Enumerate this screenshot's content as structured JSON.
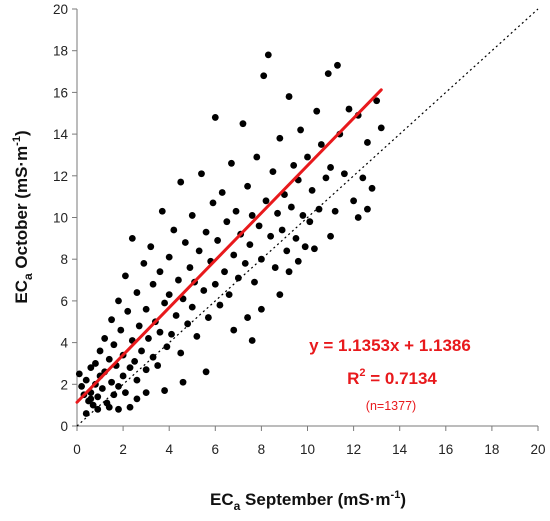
{
  "chart_data": {
    "type": "scatter",
    "title": "",
    "xlabel": {
      "main": "EC",
      "sub": "a",
      "rest": " September (mS·m",
      "sup": "-1",
      "end": ")"
    },
    "ylabel": {
      "main": "EC",
      "sub": "a",
      "rest": " October (mS·m",
      "sup": "-1",
      "end": ")"
    },
    "xlim": [
      0,
      20
    ],
    "ylim": [
      0,
      20
    ],
    "xticks": [
      0,
      2,
      4,
      6,
      8,
      10,
      12,
      14,
      16,
      18,
      20
    ],
    "yticks": [
      0,
      2,
      4,
      6,
      8,
      10,
      12,
      14,
      16,
      18,
      20
    ],
    "grid": false,
    "legend": "none",
    "point_color": "#000000",
    "regression": {
      "slope": 1.1353,
      "intercept": 1.1386,
      "x_range": [
        0,
        13.2
      ],
      "color": "#e8191c",
      "equation": "y = 1.1353x + 1.1386",
      "r2_prefix": "R",
      "r2_sup": "2",
      "r2_rest": " = 0.7134",
      "n_label": "(n=1377)"
    },
    "reference_line": {
      "style": "dotted",
      "color": "#000000",
      "from": [
        0,
        0
      ],
      "to": [
        20,
        20
      ]
    },
    "n_points": 1377,
    "points": [
      [
        0.1,
        2.5
      ],
      [
        0.2,
        1.9
      ],
      [
        0.3,
        1.5
      ],
      [
        0.4,
        2.2
      ],
      [
        0.5,
        1.2
      ],
      [
        0.6,
        2.8
      ],
      [
        0.6,
        1.6
      ],
      [
        0.7,
        1.0
      ],
      [
        0.8,
        3.0
      ],
      [
        0.8,
        2.0
      ],
      [
        0.9,
        1.4
      ],
      [
        0.9,
        0.8
      ],
      [
        1.0,
        2.4
      ],
      [
        1.0,
        3.6
      ],
      [
        1.1,
        1.8
      ],
      [
        1.2,
        4.2
      ],
      [
        1.2,
        2.6
      ],
      [
        1.3,
        1.1
      ],
      [
        1.4,
        3.2
      ],
      [
        1.5,
        2.1
      ],
      [
        1.5,
        5.1
      ],
      [
        1.6,
        1.5
      ],
      [
        1.6,
        3.9
      ],
      [
        1.7,
        2.9
      ],
      [
        1.8,
        1.9
      ],
      [
        1.8,
        6.0
      ],
      [
        1.9,
        4.6
      ],
      [
        2.0,
        2.4
      ],
      [
        2.0,
        3.4
      ],
      [
        2.1,
        7.2
      ],
      [
        2.1,
        1.6
      ],
      [
        2.2,
        5.5
      ],
      [
        2.3,
        2.8
      ],
      [
        2.4,
        4.1
      ],
      [
        2.4,
        9.0
      ],
      [
        2.5,
        3.1
      ],
      [
        2.6,
        6.4
      ],
      [
        2.6,
        2.2
      ],
      [
        2.7,
        4.8
      ],
      [
        2.8,
        3.6
      ],
      [
        2.9,
        7.8
      ],
      [
        3.0,
        2.7
      ],
      [
        3.0,
        5.6
      ],
      [
        3.1,
        4.2
      ],
      [
        3.2,
        8.6
      ],
      [
        3.3,
        3.3
      ],
      [
        3.3,
        6.8
      ],
      [
        3.4,
        5.0
      ],
      [
        3.5,
        2.9
      ],
      [
        3.6,
        7.4
      ],
      [
        3.6,
        4.5
      ],
      [
        3.7,
        10.3
      ],
      [
        3.8,
        5.9
      ],
      [
        3.9,
        3.8
      ],
      [
        4.0,
        8.1
      ],
      [
        4.0,
        6.3
      ],
      [
        4.1,
        4.4
      ],
      [
        4.2,
        9.4
      ],
      [
        4.3,
        5.3
      ],
      [
        4.4,
        7.0
      ],
      [
        4.5,
        3.5
      ],
      [
        4.5,
        11.7
      ],
      [
        4.6,
        6.1
      ],
      [
        4.7,
        8.8
      ],
      [
        4.8,
        4.9
      ],
      [
        4.9,
        7.6
      ],
      [
        5.0,
        5.7
      ],
      [
        5.0,
        10.1
      ],
      [
        5.1,
        6.9
      ],
      [
        5.2,
        4.3
      ],
      [
        5.3,
        8.4
      ],
      [
        5.4,
        12.1
      ],
      [
        5.5,
        6.5
      ],
      [
        5.6,
        9.3
      ],
      [
        5.7,
        5.2
      ],
      [
        5.8,
        7.9
      ],
      [
        5.9,
        10.7
      ],
      [
        6.0,
        6.8
      ],
      [
        6.0,
        14.8
      ],
      [
        6.1,
        8.9
      ],
      [
        6.2,
        5.8
      ],
      [
        6.3,
        11.2
      ],
      [
        6.4,
        7.4
      ],
      [
        6.5,
        9.8
      ],
      [
        6.6,
        6.3
      ],
      [
        6.7,
        12.6
      ],
      [
        6.8,
        8.2
      ],
      [
        6.9,
        10.3
      ],
      [
        7.0,
        7.1
      ],
      [
        7.1,
        9.2
      ],
      [
        7.2,
        14.5
      ],
      [
        7.3,
        7.8
      ],
      [
        7.4,
        11.5
      ],
      [
        7.5,
        8.7
      ],
      [
        7.6,
        10.1
      ],
      [
        7.7,
        6.9
      ],
      [
        7.8,
        12.9
      ],
      [
        7.9,
        9.6
      ],
      [
        8.0,
        8.0
      ],
      [
        8.1,
        16.8
      ],
      [
        8.2,
        10.8
      ],
      [
        8.3,
        17.8
      ],
      [
        8.4,
        9.1
      ],
      [
        8.5,
        12.2
      ],
      [
        8.6,
        7.6
      ],
      [
        8.7,
        10.2
      ],
      [
        8.8,
        13.8
      ],
      [
        8.9,
        9.4
      ],
      [
        9.0,
        11.1
      ],
      [
        9.1,
        8.4
      ],
      [
        9.2,
        15.8
      ],
      [
        9.3,
        10.5
      ],
      [
        9.4,
        12.5
      ],
      [
        9.5,
        9.0
      ],
      [
        9.6,
        11.8
      ],
      [
        9.7,
        14.2
      ],
      [
        9.8,
        10.1
      ],
      [
        9.9,
        8.6
      ],
      [
        10.0,
        12.9
      ],
      [
        10.1,
        9.8
      ],
      [
        10.2,
        11.3
      ],
      [
        10.4,
        15.1
      ],
      [
        10.5,
        10.4
      ],
      [
        10.6,
        13.5
      ],
      [
        10.8,
        11.9
      ],
      [
        10.9,
        16.9
      ],
      [
        11.0,
        12.4
      ],
      [
        11.2,
        10.3
      ],
      [
        11.3,
        17.3
      ],
      [
        11.4,
        14.0
      ],
      [
        11.6,
        12.1
      ],
      [
        11.8,
        15.2
      ],
      [
        12.0,
        10.8
      ],
      [
        12.2,
        14.9
      ],
      [
        12.4,
        11.9
      ],
      [
        12.6,
        13.6
      ],
      [
        12.8,
        11.4
      ],
      [
        13.0,
        15.6
      ],
      [
        13.2,
        14.3
      ],
      [
        9.2,
        7.4
      ],
      [
        9.6,
        7.9
      ],
      [
        10.3,
        8.5
      ],
      [
        11.0,
        9.1
      ],
      [
        12.2,
        10.0
      ],
      [
        12.6,
        10.4
      ],
      [
        6.8,
        4.6
      ],
      [
        7.4,
        5.2
      ],
      [
        8.0,
        5.6
      ],
      [
        8.8,
        6.3
      ],
      [
        7.6,
        4.1
      ],
      [
        5.6,
        2.6
      ],
      [
        4.6,
        2.1
      ],
      [
        3.8,
        1.7
      ],
      [
        3.0,
        1.6
      ],
      [
        2.6,
        1.3
      ],
      [
        2.3,
        0.9
      ],
      [
        1.8,
        0.8
      ],
      [
        1.4,
        0.9
      ],
      [
        0.4,
        0.6
      ],
      [
        0.6,
        1.3
      ]
    ]
  }
}
